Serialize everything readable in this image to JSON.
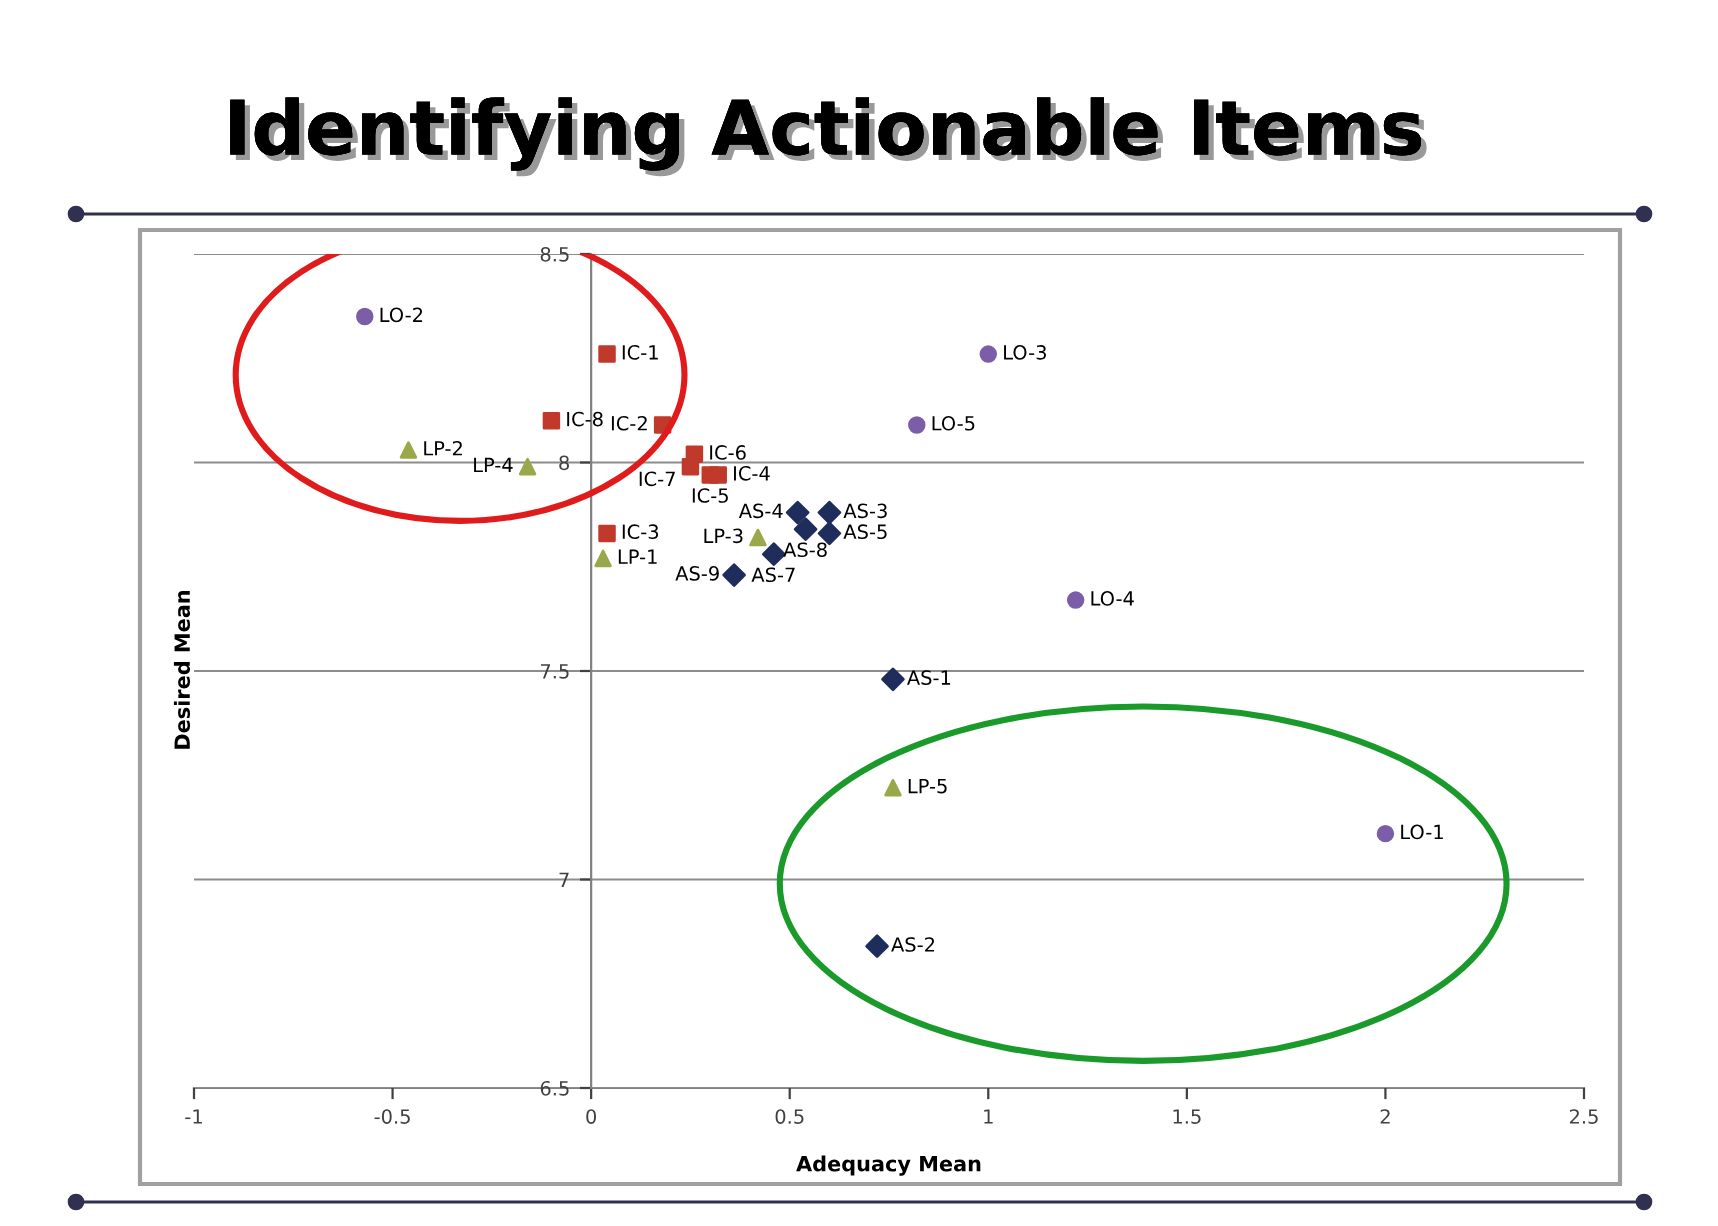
{
  "chart_data": {
    "type": "scatter",
    "title": "Identifying Actionable Items",
    "xlabel": "Adequacy Mean",
    "ylabel": "Desired Mean",
    "xlim": [
      -1,
      2.5
    ],
    "xticks": [
      -1,
      -0.5,
      0,
      0.5,
      1,
      1.5,
      2,
      2.5
    ],
    "ylim": [
      6.5,
      8.5
    ],
    "yticks": [
      6.5,
      7,
      7.5,
      8,
      8.5
    ],
    "grid": "y",
    "legend": false,
    "series": [
      {
        "color": "#7b5ea7",
        "marker": "circle",
        "x": [
          -0.57,
          1.0,
          0.82,
          1.22,
          2.0
        ],
        "values": [
          8.35,
          8.26,
          8.09,
          7.67,
          7.11
        ],
        "value_labels": [
          "LO-2",
          "LO-3",
          "LO-5",
          "LO-4",
          "LO-1"
        ]
      },
      {
        "color": "#c0392b",
        "marker": "square",
        "x": [
          0.04,
          -0.1,
          0.18,
          0.26,
          0.25,
          0.3,
          0.32,
          0.04
        ],
        "values": [
          8.26,
          8.1,
          8.09,
          8.02,
          7.99,
          7.97,
          7.97,
          7.83
        ],
        "value_labels": [
          "IC-1",
          "IC-8",
          "IC-2",
          "IC-6",
          "IC-7",
          "IC-5",
          "IC-4",
          "IC-3"
        ]
      },
      {
        "color": "#9aa84a",
        "marker": "triangle",
        "x": [
          -0.46,
          -0.16,
          0.03,
          0.42,
          0.76
        ],
        "values": [
          8.03,
          7.99,
          7.77,
          7.82,
          7.22
        ],
        "value_labels": [
          "LP-2",
          "LP-4",
          "LP-1",
          "LP-3",
          "LP-5"
        ]
      },
      {
        "color": "#1f2d5c",
        "marker": "diamond",
        "x": [
          0.52,
          0.6,
          0.54,
          0.6,
          0.46,
          0.36,
          0.76,
          0.72
        ],
        "values": [
          7.88,
          7.88,
          7.84,
          7.83,
          7.78,
          7.73,
          7.48,
          6.84
        ],
        "value_labels": [
          "AS-4",
          "AS-3",
          "AS-8",
          "AS-5",
          "AS-7",
          "AS-9",
          "AS-1",
          "AS-2"
        ]
      }
    ]
  }
}
